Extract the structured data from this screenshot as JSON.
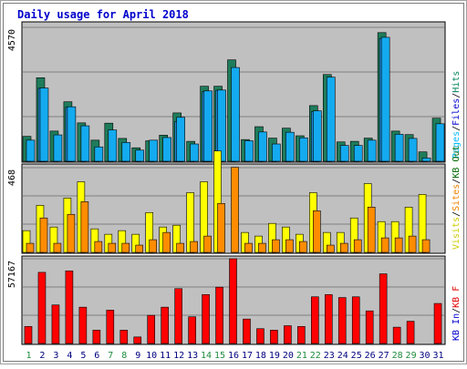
{
  "chart_data": {
    "type": "bar",
    "title": "Daily usage for April 2018",
    "categories": [
      "1",
      "2",
      "3",
      "4",
      "5",
      "6",
      "7",
      "8",
      "9",
      "10",
      "11",
      "12",
      "13",
      "14",
      "15",
      "16",
      "17",
      "18",
      "19",
      "20",
      "21",
      "22",
      "23",
      "24",
      "25",
      "26",
      "27",
      "28",
      "29",
      "30",
      "31"
    ],
    "weekend_days": [
      "1",
      "7",
      "8",
      "14",
      "15",
      "21",
      "22",
      "28",
      "29"
    ],
    "panels": [
      {
        "id": "top",
        "scale_max": 4570,
        "scale_label": "4570",
        "side_labels": [
          {
            "text": "Pages",
            "color": "#00b8ff"
          },
          {
            "text": "Files",
            "color": "#0000cc"
          },
          {
            "text": "Hits",
            "color": "#00805a"
          }
        ],
        "series": [
          {
            "name": "Hits",
            "color": "#1e7c5a",
            "values": [
              850,
              2850,
              1030,
              2030,
              1310,
              720,
              1300,
              780,
              460,
              700,
              890,
              1650,
              680,
              2560,
              2560,
              3460,
              740,
              1180,
              790,
              1130,
              870,
              1900,
              2960,
              660,
              680,
              790,
              4390,
              1030,
              910,
              320,
              1470
            ]
          },
          {
            "name": "Files",
            "color": "#1e8cd8",
            "values": [
              0,
              2490,
              0,
              1840,
              0,
              0,
              0,
              0,
              0,
              0,
              0,
              1360,
              0,
              2370,
              2420,
              0,
              0,
              0,
              0,
              0,
              0,
              1690,
              0,
              0,
              0,
              0,
              4190,
              0,
              0,
              0,
              0
            ]
          },
          {
            "name": "Pages",
            "color": "#14aaf0",
            "values": [
              720,
              2500,
              900,
              1860,
              1210,
              490,
              1070,
              640,
              380,
              720,
              810,
              1500,
              590,
              2400,
              2430,
              3200,
              700,
              1000,
              590,
              990,
              800,
              1720,
              2870,
              540,
              540,
              720,
              4230,
              920,
              780,
              110,
              1280
            ]
          }
        ]
      },
      {
        "id": "middle",
        "scale_max": 468,
        "scale_label": "468",
        "side_labels": [
          {
            "text": "Visits",
            "color": "#cccc00"
          },
          {
            "text": "Sites",
            "color": "#f08000"
          },
          {
            "text": "KB Out",
            "color": "#006600"
          }
        ],
        "series": [
          {
            "name": "Visits",
            "color": "#ffff00",
            "values": [
              120,
              260,
              140,
              300,
              390,
              130,
              100,
              120,
              100,
              220,
              140,
              150,
              330,
              390,
              560,
              0,
              110,
              90,
              160,
              140,
              100,
              330,
              110,
              110,
              190,
              380,
              170,
              170,
              250,
              320,
              0
            ]
          },
          {
            "name": "Sites",
            "color": "#ff8c00",
            "values": [
              50,
              190,
              50,
              210,
              280,
              60,
              50,
              50,
              40,
              70,
              110,
              50,
              60,
              90,
              270,
              470,
              50,
              50,
              70,
              70,
              60,
              230,
              40,
              50,
              70,
              250,
              80,
              80,
              90,
              70,
              0
            ]
          }
        ]
      },
      {
        "id": "bottom",
        "scale_max": 57167,
        "scale_label": "57167",
        "side_labels": [
          {
            "text": "KB In",
            "color": "#0000cc"
          },
          {
            "text": "KB F",
            "color": "#e00000"
          }
        ],
        "series": [
          {
            "name": "KB In",
            "color": "#ff0000",
            "values": [
              11500,
              48000,
              26000,
              49000,
              24500,
              9000,
              22500,
              9000,
              4400,
              19000,
              24500,
              37000,
              18000,
              33000,
              38000,
              57167,
              16500,
              10000,
              9000,
              12000,
              11500,
              31500,
              33000,
              31000,
              31500,
              22000,
              47000,
              11000,
              15000,
              0,
              27000
            ]
          }
        ]
      }
    ]
  }
}
